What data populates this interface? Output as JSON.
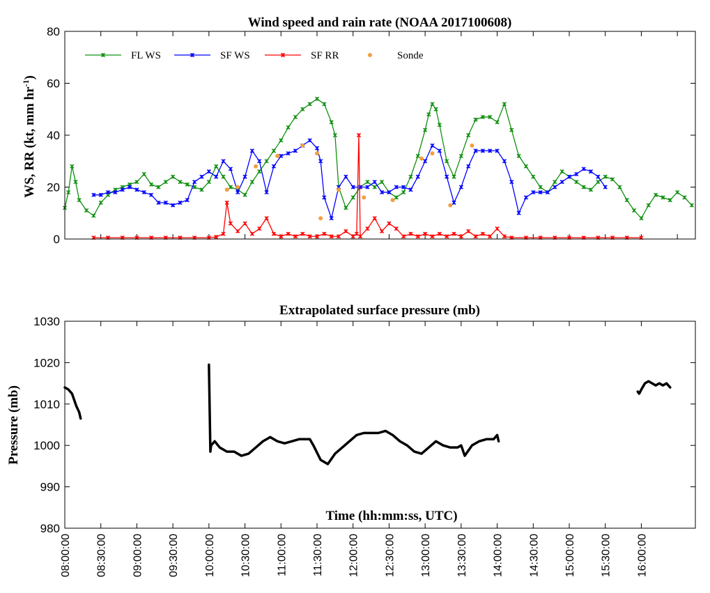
{
  "chart_data": [
    {
      "type": "line",
      "title": "Wind speed and rain rate (NOAA 2017100608)",
      "ylabel": "WS, RR (kt, mm hr",
      "ylabel_sup": "-1",
      "ylabel_close": ")",
      "ylim": [
        0,
        80
      ],
      "yticks": [
        "0",
        "20",
        "40",
        "60",
        "80"
      ],
      "x_unit": "hours UTC",
      "xlim": [
        8.0,
        16.75
      ],
      "legend_position": "top-left (horizontal row)",
      "colors": {
        "FL WS": "#109010",
        "SF WS": "#0000ff",
        "SF RR": "#ff0000",
        "Sonde": "#f0a040"
      },
      "series": [
        {
          "name": "FL WS",
          "color": "#109010",
          "marker": "x-star",
          "x": [
            8.0,
            8.05,
            8.1,
            8.15,
            8.2,
            8.3,
            8.4,
            8.5,
            8.6,
            8.7,
            8.8,
            8.9,
            9.0,
            9.1,
            9.2,
            9.3,
            9.4,
            9.5,
            9.6,
            9.7,
            9.8,
            9.9,
            10.0,
            10.1,
            10.2,
            10.3,
            10.4,
            10.5,
            10.6,
            10.7,
            10.8,
            10.9,
            11.0,
            11.1,
            11.2,
            11.3,
            11.4,
            11.5,
            11.6,
            11.7,
            11.75,
            11.8,
            11.9,
            12.0,
            12.1,
            12.2,
            12.3,
            12.4,
            12.5,
            12.6,
            12.7,
            12.8,
            12.9,
            13.0,
            13.05,
            13.1,
            13.15,
            13.2,
            13.3,
            13.4,
            13.5,
            13.6,
            13.7,
            13.8,
            13.9,
            14.0,
            14.1,
            14.2,
            14.3,
            14.4,
            14.5,
            14.6,
            14.7,
            14.8,
            14.9,
            15.0,
            15.1,
            15.2,
            15.3,
            15.4,
            15.5,
            15.6,
            15.7,
            15.8,
            15.9,
            16.0,
            16.1,
            16.2,
            16.3,
            16.4,
            16.5,
            16.6,
            16.7
          ],
          "y": [
            12,
            18,
            28,
            22,
            15,
            11,
            9,
            14,
            17,
            19,
            20,
            21,
            22,
            25,
            21,
            20,
            22,
            24,
            22,
            21,
            20,
            19,
            22,
            28,
            24,
            20,
            19,
            17,
            22,
            26,
            30,
            34,
            38,
            43,
            47,
            50,
            52,
            54,
            52,
            45,
            40,
            20,
            12,
            16,
            20,
            22,
            20,
            22,
            18,
            16,
            18,
            24,
            32,
            42,
            48,
            52,
            50,
            44,
            30,
            24,
            32,
            40,
            46,
            47,
            47,
            45,
            52,
            42,
            32,
            28,
            24,
            20,
            18,
            22,
            26,
            24,
            22,
            20,
            19,
            22,
            24,
            23,
            20,
            15,
            11,
            8,
            13,
            17,
            16,
            15,
            18,
            16,
            13
          ]
        },
        {
          "name": "SF WS",
          "color": "#0000ff",
          "marker": "x-star",
          "x": [
            8.4,
            8.5,
            8.6,
            8.7,
            8.8,
            8.9,
            9.0,
            9.1,
            9.2,
            9.3,
            9.4,
            9.5,
            9.6,
            9.7,
            9.8,
            9.9,
            10.0,
            10.1,
            10.2,
            10.3,
            10.4,
            10.5,
            10.6,
            10.7,
            10.8,
            10.9,
            11.0,
            11.1,
            11.2,
            11.3,
            11.4,
            11.5,
            11.55,
            11.6,
            11.7,
            11.8,
            11.9,
            12.0,
            12.1,
            12.2,
            12.3,
            12.4,
            12.5,
            12.6,
            12.7,
            12.8,
            12.9,
            13.0,
            13.1,
            13.2,
            13.3,
            13.4,
            13.5,
            13.6,
            13.7,
            13.8,
            13.9,
            14.0,
            14.1,
            14.2,
            14.3,
            14.4,
            14.5,
            14.6,
            14.7,
            14.8,
            14.9,
            15.0,
            15.1,
            15.2,
            15.3,
            15.4,
            15.5
          ],
          "y": [
            17,
            17,
            18,
            18,
            19,
            20,
            19,
            18,
            17,
            14,
            14,
            13,
            14,
            15,
            22,
            24,
            26,
            24,
            30,
            27,
            18,
            24,
            34,
            30,
            18,
            28,
            32,
            33,
            34,
            36,
            38,
            35,
            30,
            16,
            8,
            20,
            24,
            20,
            20,
            20,
            22,
            18,
            18,
            20,
            20,
            19,
            24,
            30,
            36,
            34,
            24,
            14,
            20,
            28,
            34,
            34,
            34,
            34,
            30,
            22,
            10,
            16,
            18,
            18,
            18,
            20,
            22,
            24,
            25,
            27,
            26,
            24,
            20
          ]
        },
        {
          "name": "SF RR",
          "color": "#ff0000",
          "marker": "x-star",
          "x": [
            8.4,
            8.6,
            8.8,
            9.0,
            9.2,
            9.4,
            9.6,
            9.8,
            10.0,
            10.1,
            10.2,
            10.25,
            10.3,
            10.4,
            10.5,
            10.6,
            10.7,
            10.8,
            10.9,
            11.0,
            11.1,
            11.2,
            11.3,
            11.4,
            11.5,
            11.6,
            11.7,
            11.8,
            11.9,
            12.0,
            12.05,
            12.08,
            12.1,
            12.2,
            12.3,
            12.4,
            12.5,
            12.6,
            12.7,
            12.8,
            12.9,
            13.0,
            13.1,
            13.2,
            13.3,
            13.4,
            13.5,
            13.6,
            13.7,
            13.8,
            13.9,
            14.0,
            14.1,
            14.2,
            14.4,
            14.6,
            14.8,
            15.0,
            15.2,
            15.4,
            15.6,
            15.8,
            16.0
          ],
          "y": [
            0.5,
            0.5,
            0.5,
            0.5,
            0.5,
            0.5,
            0.5,
            0.5,
            0.5,
            0.8,
            2,
            14,
            6,
            3,
            6,
            2,
            4,
            8,
            2,
            1,
            2,
            1,
            2,
            1,
            1,
            2,
            1,
            1,
            3,
            1,
            2,
            40,
            1,
            4,
            8,
            3,
            6,
            4,
            1,
            2,
            1,
            2,
            1,
            2,
            1,
            2,
            1,
            3,
            1,
            2,
            1,
            4,
            1,
            0.5,
            0.5,
            0.5,
            0.5,
            0.5,
            0.5,
            0.5,
            0.5,
            0.5,
            0.5
          ]
        },
        {
          "name": "Sonde",
          "color": "#f0a040",
          "marker": "dot",
          "x": [
            10.25,
            10.4,
            10.65,
            10.95,
            11.3,
            11.5,
            11.55,
            11.8,
            12.15,
            12.55,
            12.95,
            13.1,
            13.35,
            13.65
          ],
          "y": [
            19,
            20,
            28,
            32,
            36,
            33,
            8,
            19,
            16,
            15,
            31,
            33,
            13,
            36
          ]
        }
      ]
    },
    {
      "type": "line",
      "title": "Extrapolated surface pressure (mb)",
      "ylabel": "Pressure (mb)",
      "xlabel": "Time (hh:mm:ss, UTC)",
      "ylim": [
        980,
        1030
      ],
      "yticks": [
        "980",
        "990",
        "1000",
        "1010",
        "1020",
        "1030"
      ],
      "x_unit": "hours UTC",
      "xlim": [
        8.0,
        16.75
      ],
      "xticks": [
        "08:00:00",
        "08:30:00",
        "09:00:00",
        "09:30:00",
        "10:00:00",
        "10:30:00",
        "11:00:00",
        "11:30:00",
        "12:00:00",
        "12:30:00",
        "13:00:00",
        "13:30:00",
        "14:00:00",
        "14:30:00",
        "15:00:00",
        "15:30:00",
        "16:00:00"
      ],
      "color": "#000000",
      "segments": [
        {
          "x": [
            8.0,
            8.05,
            8.1,
            8.13,
            8.16,
            8.2,
            8.22
          ],
          "y": [
            1014,
            1013.5,
            1012.5,
            1011,
            1009.5,
            1008,
            1006.5
          ]
        },
        {
          "x": [
            10.0,
            10.02,
            10.03,
            10.08,
            10.15,
            10.25,
            10.35,
            10.45,
            10.55,
            10.65,
            10.75,
            10.85,
            10.95,
            11.05,
            11.15,
            11.25,
            11.35,
            11.4,
            11.45,
            11.55,
            11.65,
            11.75,
            11.85,
            11.95,
            12.05,
            12.15,
            12.25,
            12.35,
            12.45,
            12.55,
            12.65,
            12.75,
            12.85,
            12.95,
            13.05,
            13.15,
            13.25,
            13.35,
            13.45,
            13.5,
            13.55,
            13.65,
            13.75,
            13.85,
            13.95,
            14.0,
            14.02
          ],
          "y": [
            1019.5,
            998.5,
            1000,
            1001,
            999.5,
            998.5,
            998.5,
            997.5,
            998,
            999.5,
            1001,
            1002,
            1001,
            1000.5,
            1001,
            1001.5,
            1001.5,
            1001.5,
            1000,
            996.5,
            995.5,
            998,
            999.5,
            1001,
            1002.5,
            1003,
            1003,
            1003,
            1003.5,
            1002.5,
            1001,
            1000,
            998.5,
            998,
            999.5,
            1001,
            1000,
            999.5,
            999.5,
            1000,
            997.5,
            1000,
            1001,
            1001.5,
            1001.5,
            1002.5,
            1001
          ]
        },
        {
          "x": [
            15.95,
            15.97,
            16.0,
            16.05,
            16.1,
            16.15,
            16.2,
            16.25,
            16.3,
            16.35,
            16.4
          ],
          "y": [
            1013,
            1012.5,
            1013.5,
            1015,
            1015.5,
            1015,
            1014.5,
            1015,
            1014.5,
            1015,
            1014
          ]
        }
      ]
    }
  ]
}
